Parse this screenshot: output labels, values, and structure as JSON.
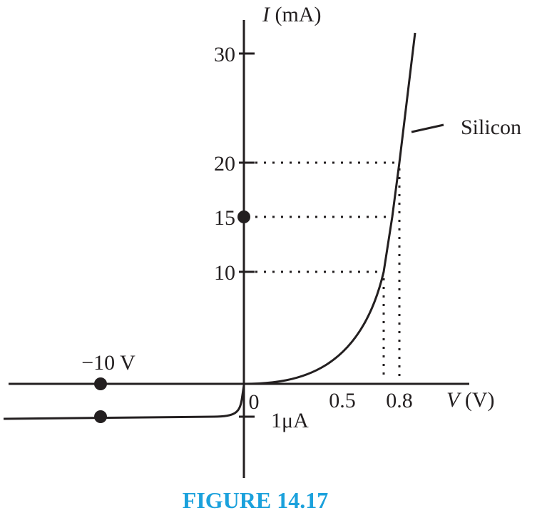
{
  "y_axis": {
    "symbol": "I",
    "unit": "(mA)",
    "ticks": [
      "30",
      "20",
      "15",
      "10"
    ],
    "reverse_tick": "1μA"
  },
  "x_axis": {
    "symbol": "V",
    "unit": "(V)",
    "ticks": [
      "0",
      "0.5",
      "0.8"
    ],
    "reverse_label": "−10 V"
  },
  "curve_label": "Silicon",
  "caption": "FIGURE 14.17"
}
